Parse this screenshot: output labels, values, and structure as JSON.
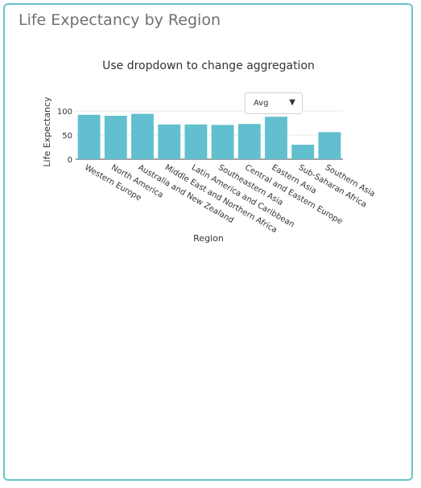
{
  "card": {
    "title": "Life Expectancy by Region"
  },
  "dropdown": {
    "selected": "Avg",
    "arrow_icon": "triangle-down-icon"
  },
  "colors": {
    "bar": "#62bfcf",
    "border": "#6cc3cb"
  },
  "chart_data": {
    "type": "bar",
    "title": "Use dropdown to change aggregation",
    "xlabel": "Region",
    "ylabel": "Life Expectancy",
    "ylim": [
      0,
      100
    ],
    "yticks": [
      0,
      50,
      100
    ],
    "grid": true,
    "categories": [
      "Western Europe",
      "North America",
      "Australia and New Zealand",
      "Middle East and Northern Africa",
      "Latin America and Caribbean",
      "Southeastern Asia",
      "Central and Eastern Europe",
      "Eastern Asia",
      "Sub-Saharan Africa",
      "Southern Asia"
    ],
    "values": [
      92,
      90,
      94,
      72,
      72,
      71,
      73,
      88,
      30,
      56
    ]
  }
}
